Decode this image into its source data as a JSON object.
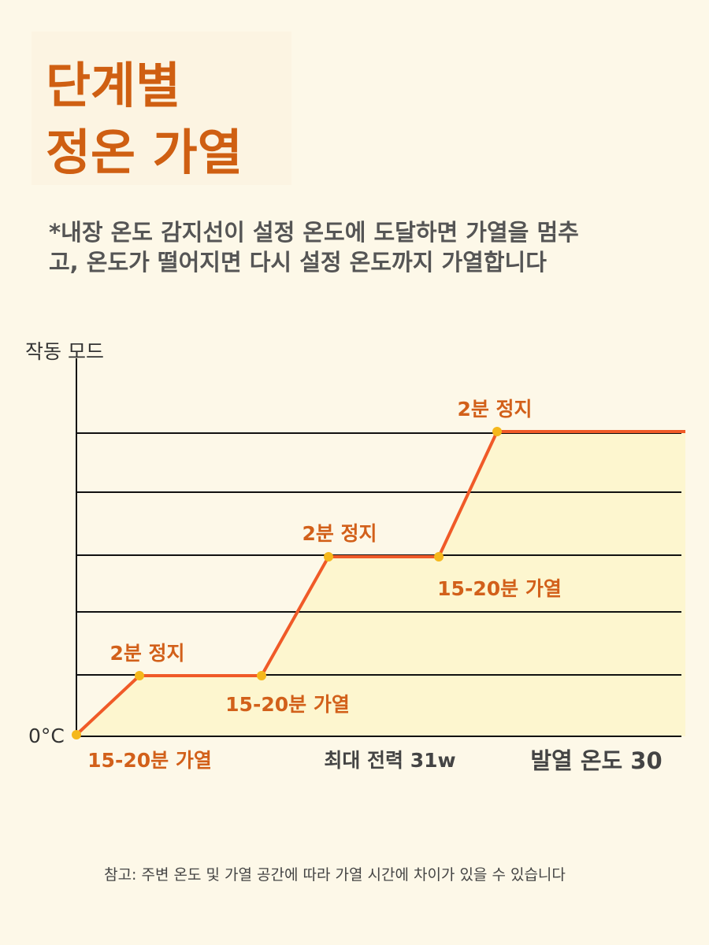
{
  "title": [
    "단계별",
    "정온 가열"
  ],
  "description": [
    "*내장 온도 감지선이 설정 온도에 도달하면 가열을 멈추",
    "고, 온도가 떨어지면 다시 설정 온도까지 가열합니다"
  ],
  "diagram": {
    "y_axis_label": "작동 모드",
    "origin_label": "0°C",
    "annotations": [
      "2분 정지",
      "15-20분 가열",
      "2분 정지",
      "15-20분 가열",
      "2분 정지",
      "15-20분 가열"
    ]
  },
  "specs": [
    "최대 전력 31w",
    "발열 온도 30"
  ],
  "note": "참고: 주변 온도 및 가열 공간에 따라 가열 시간에 차이가 있을 수 있습니다"
}
